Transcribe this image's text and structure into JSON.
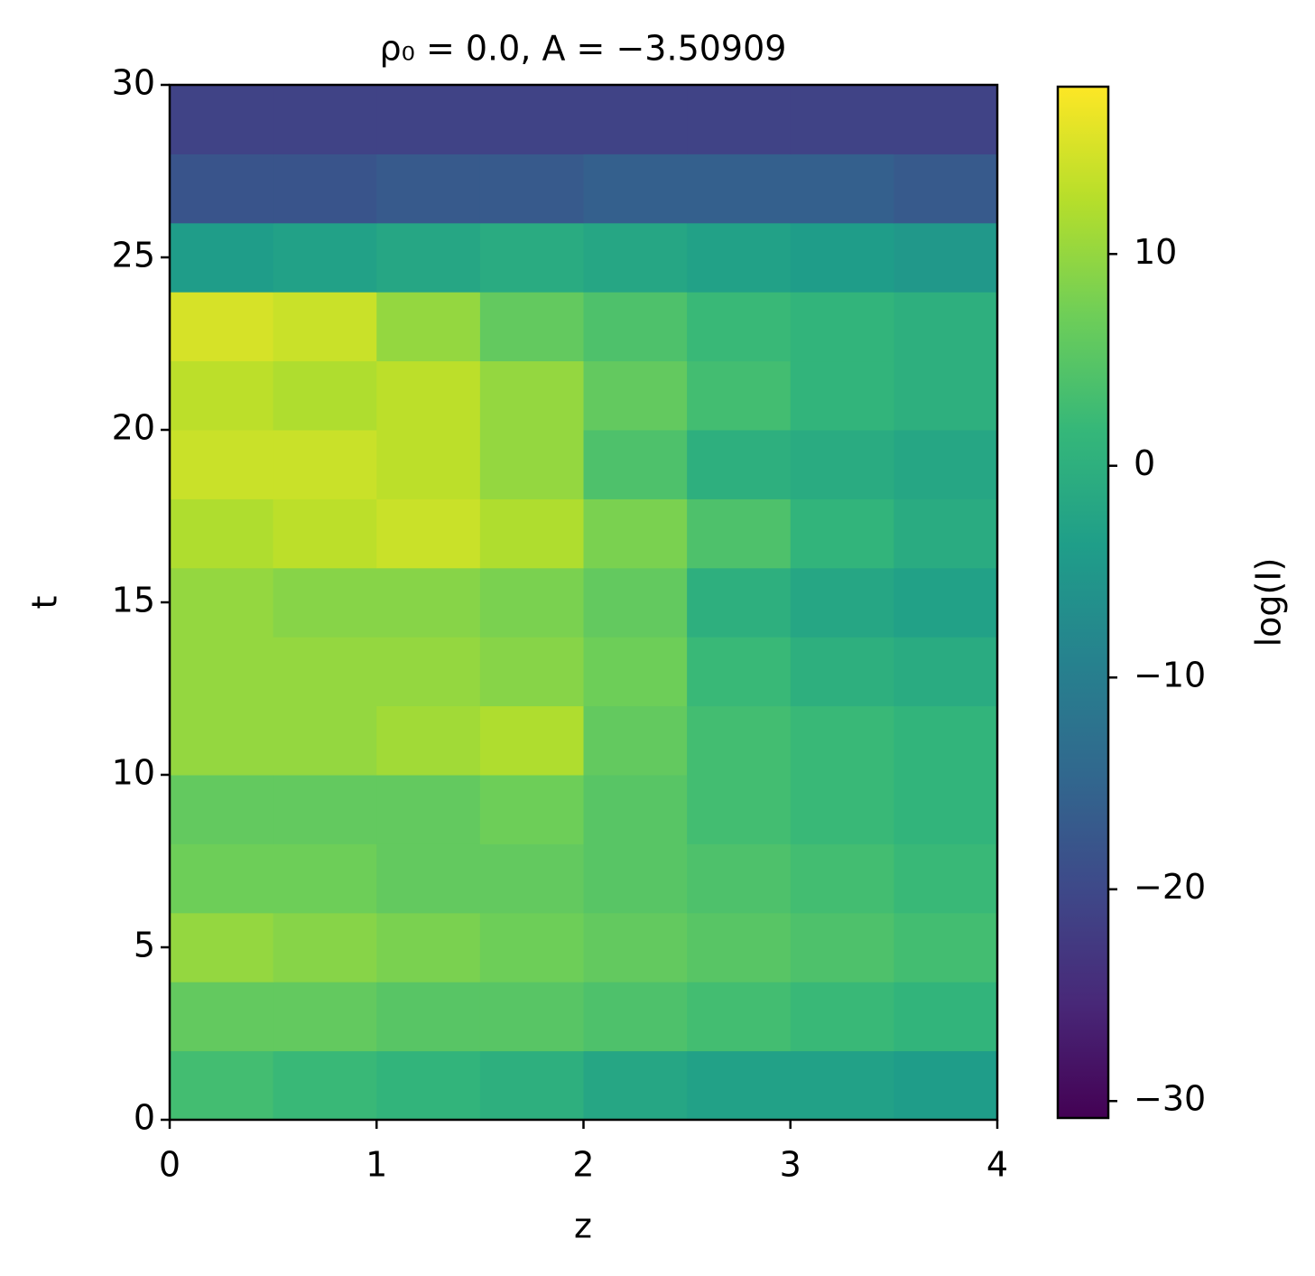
{
  "chart_data": {
    "type": "heatmap",
    "title": "ρ₀ = 0.0, A = −3.50909",
    "x_label": "z",
    "y_label": "t",
    "colorbar_label": "log(I)",
    "colormap": "viridis",
    "x": [
      0.25,
      0.75,
      1.25,
      1.75,
      2.25,
      2.75,
      3.25,
      3.75
    ],
    "y": [
      1,
      3,
      5,
      7,
      9,
      11,
      13,
      15,
      17,
      19,
      21,
      23,
      25,
      27,
      29
    ],
    "z": [
      [
        3,
        2,
        1,
        0,
        -2,
        -3,
        -3,
        -4
      ],
      [
        6,
        6,
        5,
        5,
        4,
        3,
        2,
        1
      ],
      [
        10,
        9,
        8,
        7,
        6,
        5,
        4,
        3
      ],
      [
        7,
        7,
        6,
        6,
        5,
        4,
        3,
        2
      ],
      [
        6,
        6,
        6,
        7,
        5,
        3,
        2,
        1
      ],
      [
        10,
        10,
        11,
        12,
        6,
        3,
        2,
        1
      ],
      [
        10,
        10,
        10,
        9,
        7,
        2,
        0,
        -1
      ],
      [
        10,
        9,
        9,
        8,
        6,
        0,
        -2,
        -3
      ],
      [
        12,
        13,
        14,
        12,
        8,
        4,
        1,
        -1
      ],
      [
        14,
        14,
        13,
        10,
        4,
        0,
        -1,
        -2
      ],
      [
        13,
        12,
        13,
        10,
        6,
        3,
        1,
        0
      ],
      [
        15,
        14,
        10,
        6,
        4,
        2,
        1,
        0
      ],
      [
        -4,
        -3,
        -2,
        -1,
        -2,
        -3,
        -4,
        -5
      ],
      [
        -18,
        -18,
        -17,
        -17,
        -16,
        -16,
        -16,
        -17
      ],
      [
        -21,
        -21,
        -21,
        -21,
        -21,
        -21,
        -21,
        -21
      ]
    ],
    "xlim": [
      0,
      4
    ],
    "ylim": [
      0,
      30
    ],
    "clim": [
      -30.8,
      17.9
    ],
    "xticks": [
      0,
      1,
      2,
      3,
      4
    ],
    "yticks": [
      0,
      5,
      10,
      15,
      20,
      25,
      30
    ],
    "cticks": [
      {
        "value": -30,
        "label": "−30"
      },
      {
        "value": -20,
        "label": "−20"
      },
      {
        "value": -10,
        "label": "−10"
      },
      0,
      10
    ]
  }
}
